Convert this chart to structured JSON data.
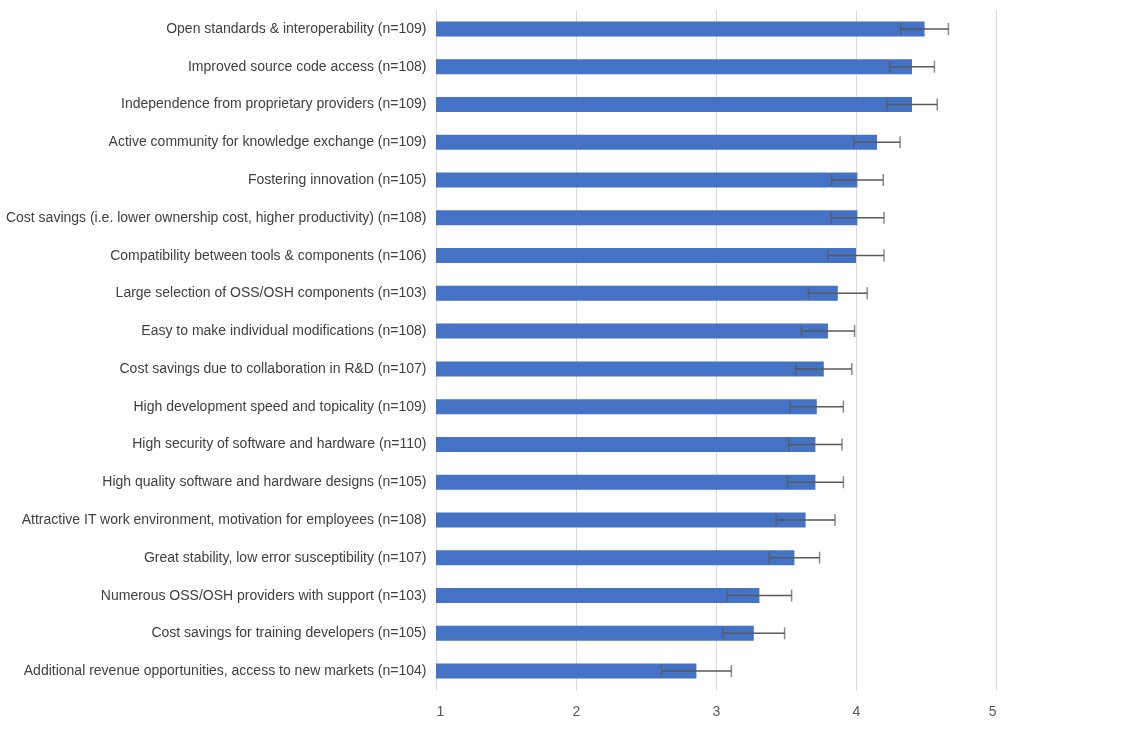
{
  "chart_data": {
    "type": "bar",
    "orientation": "horizontal",
    "categories": [
      "Open standards & interoperability (n=109)",
      "Improved source code access (n=108)",
      "Independence from proprietary providers (n=109)",
      "Active community for knowledge exchange (n=109)",
      "Fostering innovation (n=105)",
      "Cost savings (i.e. lower ownership cost, higher productivity) (n=108)",
      "Compatibility between tools & components (n=106)",
      "Large selection of OSS/OSH components (n=103)",
      "Easy to make individual modifications (n=108)",
      "Cost savings due to collaboration in R&D (n=107)",
      "High development speed and topicality (n=109)",
      "High security of software and hardware (n=110)",
      "High quality software and hardware designs (n=105)",
      "Attractive IT work environment, motivation for employees (n=108)",
      "Great stability, low error susceptibility (n=107)",
      "Numerous OSS/OSH providers with support (n=103)",
      "Cost savings for training developers (n=105)",
      "Additional revenue opportunities, access to new markets (n=104)"
    ],
    "values": [
      4.49,
      4.4,
      4.4,
      4.15,
      4.01,
      4.01,
      4.0,
      3.87,
      3.8,
      3.77,
      3.72,
      3.71,
      3.71,
      3.64,
      3.56,
      3.31,
      3.27,
      2.86
    ],
    "errors": [
      0.17,
      0.16,
      0.18,
      0.165,
      0.185,
      0.19,
      0.2,
      0.21,
      0.19,
      0.2,
      0.19,
      0.19,
      0.2,
      0.21,
      0.18,
      0.23,
      0.22,
      0.25
    ],
    "color": "#4472c4",
    "xlim": [
      1,
      5
    ],
    "xticks": [
      1,
      2,
      3,
      4,
      5
    ],
    "grid": "x"
  }
}
